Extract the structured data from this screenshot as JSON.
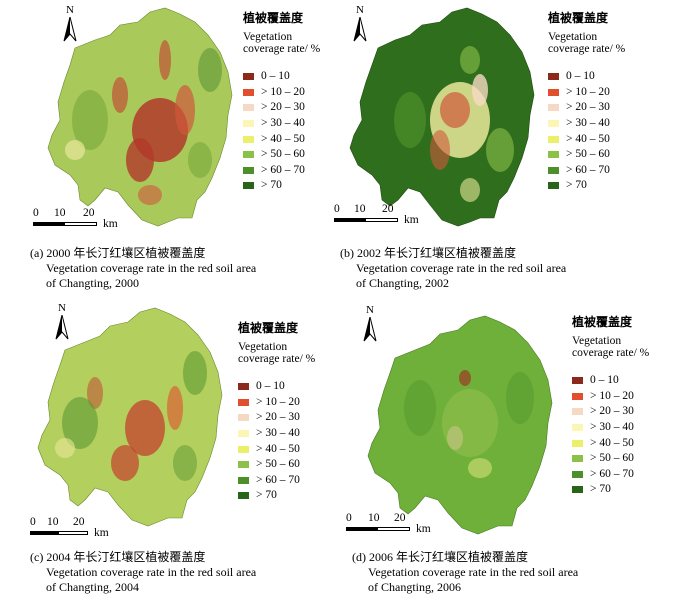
{
  "panels": [
    {
      "north": "N",
      "legend_title_cn": "植被覆盖度",
      "legend_title_en_1": "Vegetation",
      "legend_title_en_2": "coverage rate/ %",
      "scale_ticks": [
        "0",
        "10",
        "20"
      ],
      "scale_unit": "km",
      "caption_main": "(a) 2000 年长汀红壤区植被覆盖度",
      "caption_en_1": "Vegetation coverage rate in the red soil area",
      "caption_en_2": "of Changting, 2000",
      "colors": {
        "low": "#b23a2a",
        "mid": "#a9c95a",
        "high": "#4f8c2e"
      }
    },
    {
      "north": "N",
      "legend_title_cn": "植被覆盖度",
      "legend_title_en_1": "Vegetation",
      "legend_title_en_2": "coverage rate/ %",
      "scale_ticks": [
        "0",
        "10",
        "20"
      ],
      "scale_unit": "km",
      "caption_main": "(b) 2002 年长汀红壤区植被覆盖度",
      "caption_en_1": "Vegetation coverage rate in the red soil area",
      "caption_en_2": "of Changting, 2002",
      "colors": {
        "low": "#d0593c",
        "mid": "#e9e79a",
        "high": "#2f6e1c"
      }
    },
    {
      "north": "N",
      "legend_title_cn": "植被覆盖度",
      "legend_title_en_1": "Vegetation",
      "legend_title_en_2": "coverage rate/ %",
      "scale_ticks": [
        "0",
        "10",
        "20"
      ],
      "scale_unit": "km",
      "caption_main": "(c) 2004 年长汀红壤区植被覆盖度",
      "caption_en_1": "Vegetation coverage rate  in the red soil area",
      "caption_en_2": "of Changting, 2004",
      "colors": {
        "low": "#c4402e",
        "mid": "#b3cf5e",
        "high": "#5b9a34"
      }
    },
    {
      "north": "N",
      "legend_title_cn": "植被覆盖度",
      "legend_title_en_1": "Vegetation",
      "legend_title_en_2": "coverage rate/ %",
      "scale_ticks": [
        "0",
        "10",
        "20"
      ],
      "scale_unit": "km",
      "caption_main": "(d) 2006 年长汀红壤区植被覆盖度",
      "caption_en_1": "Vegetation coverage rate in the red soil area",
      "caption_en_2": "of Changting, 2006",
      "colors": {
        "low": "#9c3a24",
        "mid": "#8bbb4a",
        "high": "#5a9c2e"
      }
    }
  ],
  "legend_classes": [
    {
      "label": "0 – 10",
      "color": "#8b2a1a"
    },
    {
      "label": "> 10 – 20",
      "color": "#e0502e"
    },
    {
      "label": "> 20 – 30",
      "color": "#f6d9c4"
    },
    {
      "label": "> 30 – 40",
      "color": "#fbf6b4"
    },
    {
      "label": "> 40 – 50",
      "color": "#ecef6a"
    },
    {
      "label": "> 50 – 60",
      "color": "#8cc049"
    },
    {
      "label": "> 60 – 70",
      "color": "#4d8f2a"
    },
    {
      "label": "> 70",
      "color": "#2a6419"
    }
  ]
}
